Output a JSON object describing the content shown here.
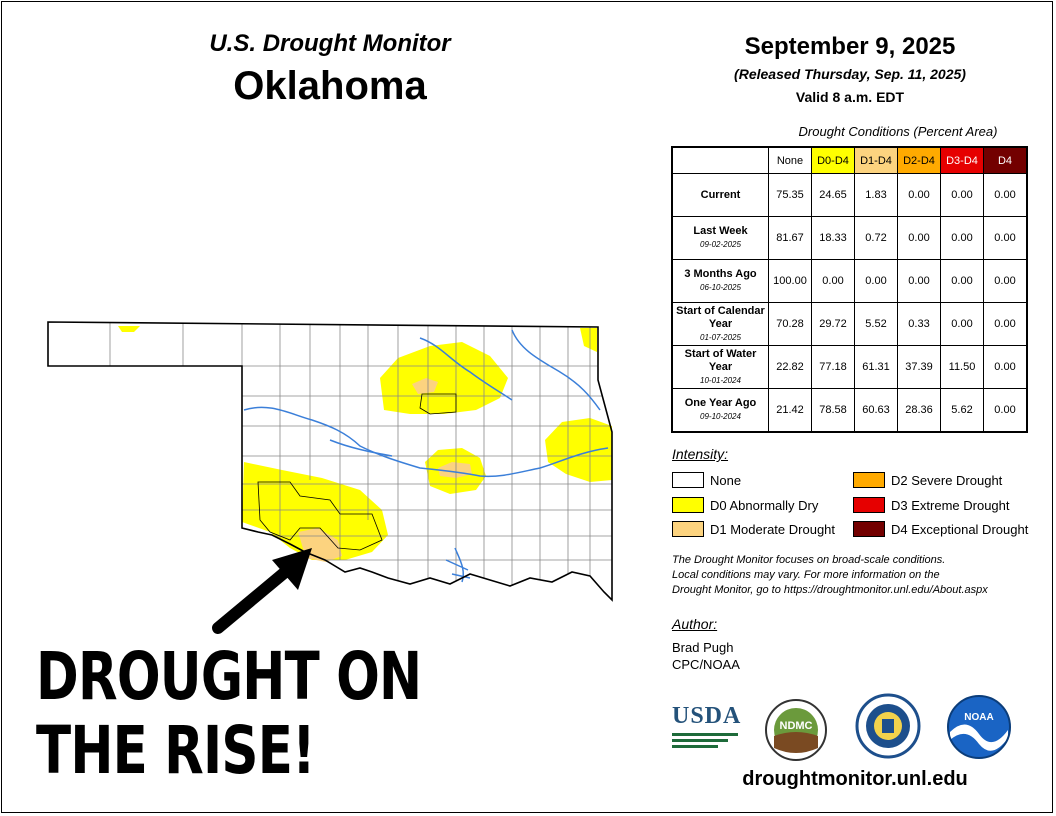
{
  "header": {
    "subtitle": "U.S. Drought Monitor",
    "state": "Oklahoma",
    "date": "September 9, 2025",
    "released": "(Released Thursday, Sep. 11, 2025)",
    "valid": "Valid 8 a.m. EDT"
  },
  "table": {
    "title": "Drought Conditions (Percent Area)",
    "columns": [
      {
        "label": "None",
        "color": "#ffffff"
      },
      {
        "label": "D0-D4",
        "color": "#ffff00"
      },
      {
        "label": "D1-D4",
        "color": "#fcd37f"
      },
      {
        "label": "D2-D4",
        "color": "#ffaa00"
      },
      {
        "label": "D3-D4",
        "color": "#e60000"
      },
      {
        "label": "D4",
        "color": "#730000"
      }
    ],
    "rows": [
      {
        "label": "Current",
        "date": "",
        "values": [
          "75.35",
          "24.65",
          "1.83",
          "0.00",
          "0.00",
          "0.00"
        ]
      },
      {
        "label": "Last Week",
        "date": "09-02-2025",
        "values": [
          "81.67",
          "18.33",
          "0.72",
          "0.00",
          "0.00",
          "0.00"
        ]
      },
      {
        "label": "3 Months Ago",
        "date": "06-10-2025",
        "values": [
          "100.00",
          "0.00",
          "0.00",
          "0.00",
          "0.00",
          "0.00"
        ]
      },
      {
        "label": "Start of Calendar Year",
        "date": "01-07-2025",
        "values": [
          "70.28",
          "29.72",
          "5.52",
          "0.33",
          "0.00",
          "0.00"
        ]
      },
      {
        "label": "Start of Water Year",
        "date": "10-01-2024",
        "values": [
          "22.82",
          "77.18",
          "61.31",
          "37.39",
          "11.50",
          "0.00"
        ]
      },
      {
        "label": "One Year Ago",
        "date": "09-10-2024",
        "values": [
          "21.42",
          "78.58",
          "60.63",
          "28.36",
          "5.62",
          "0.00"
        ]
      }
    ]
  },
  "legend": {
    "title": "Intensity:",
    "items": [
      {
        "label": "None",
        "color": "#ffffff"
      },
      {
        "label": "D0 Abnormally Dry",
        "color": "#ffff00"
      },
      {
        "label": "D1 Moderate Drought",
        "color": "#fcd37f"
      },
      {
        "label": "D2 Severe Drought",
        "color": "#ffaa00"
      },
      {
        "label": "D3 Extreme Drought",
        "color": "#e60000"
      },
      {
        "label": "D4 Exceptional Drought",
        "color": "#730000"
      }
    ]
  },
  "note": {
    "line1": "The Drought Monitor focuses on broad-scale conditions.",
    "line2": "Local conditions may vary. For more information on the",
    "line3": "Drought Monitor, go to https://droughtmonitor.unl.edu/About.aspx"
  },
  "author": {
    "title": "Author:",
    "name": "Brad Pugh",
    "org": "CPC/NOAA"
  },
  "logos": {
    "usda": "USDA",
    "ndmc": "NDMC",
    "noaa": "NOAA"
  },
  "url": "droughtmonitor.unl.edu",
  "overlay": {
    "line1": "DROUGHT ON",
    "line2": "THE RISE!"
  },
  "colors": {
    "river": "#3b7fd9",
    "county_line": "#888888",
    "state_line": "#000000"
  }
}
